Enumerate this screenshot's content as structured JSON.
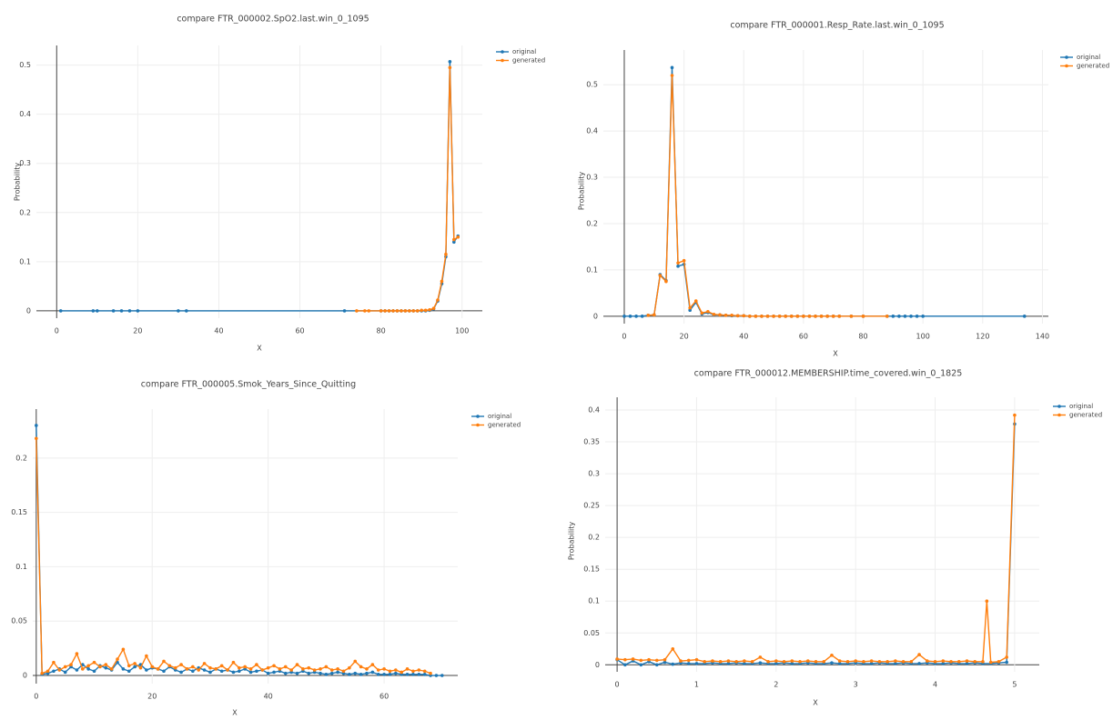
{
  "chart_data": [
    {
      "type": "line",
      "title": "compare FTR_000002.SpO2.last.win_0_1095",
      "x_label": "X",
      "y_label": "Probability",
      "xlim": [
        -5,
        105
      ],
      "ylim": [
        -0.015,
        0.54
      ],
      "xticks": [
        0,
        20,
        40,
        60,
        80,
        100
      ],
      "yticks": [
        0,
        0.1,
        0.2,
        0.3,
        0.4,
        0.5
      ],
      "grid": true,
      "legend": "right",
      "series": [
        {
          "name": "original",
          "color": "#1f77b4",
          "x": [
            1,
            9,
            10,
            14,
            16,
            18,
            20,
            30,
            32,
            71,
            80,
            81,
            82,
            83,
            84,
            85,
            86,
            87,
            88,
            89,
            90,
            91,
            92,
            93,
            94,
            95,
            96,
            97,
            98,
            99
          ],
          "values": [
            0,
            0,
            0,
            0,
            0,
            0,
            0,
            0,
            0,
            0,
            0,
            0,
            0,
            0,
            0,
            0,
            0,
            0,
            0,
            0,
            0,
            0,
            0.001,
            0.004,
            0.02,
            0.055,
            0.11,
            0.507,
            0.14,
            0.152
          ]
        },
        {
          "name": "generated",
          "color": "#ff7f0e",
          "x": [
            74,
            76,
            77,
            80,
            81,
            82,
            83,
            84,
            85,
            86,
            87,
            88,
            89,
            90,
            91,
            92,
            93,
            94,
            95,
            96,
            97,
            98,
            99
          ],
          "values": [
            0,
            0,
            0,
            0,
            0,
            0,
            0,
            0,
            0,
            0,
            0,
            0,
            0,
            0.001,
            0.001,
            0.002,
            0.005,
            0.022,
            0.06,
            0.115,
            0.495,
            0.145,
            0.15
          ]
        }
      ]
    },
    {
      "type": "line",
      "title": "compare FTR_000001.Resp_Rate.last.win_0_1095",
      "x_label": "X",
      "y_label": "Probability",
      "xlim": [
        -7,
        142
      ],
      "ylim": [
        -0.016,
        0.575
      ],
      "xticks": [
        0,
        20,
        40,
        60,
        80,
        100,
        120,
        140
      ],
      "yticks": [
        0,
        0.1,
        0.2,
        0.3,
        0.4,
        0.5
      ],
      "grid": true,
      "legend": "right",
      "series": [
        {
          "name": "original",
          "color": "#1f77b4",
          "x": [
            0,
            2,
            4,
            6,
            8,
            10,
            12,
            14,
            16,
            18,
            20,
            22,
            24,
            26,
            28,
            30,
            32,
            34,
            36,
            38,
            40,
            42,
            44,
            46,
            48,
            50,
            52,
            54,
            56,
            58,
            60,
            62,
            64,
            66,
            68,
            70,
            72,
            76,
            80,
            88,
            90,
            92,
            94,
            96,
            98,
            100,
            134
          ],
          "values": [
            0,
            0,
            0,
            0,
            0.002,
            0.003,
            0.09,
            0.077,
            0.537,
            0.108,
            0.112,
            0.013,
            0.03,
            0.005,
            0.008,
            0.003,
            0.003,
            0.002,
            0.001,
            0.001,
            0.001,
            0,
            0,
            0,
            0,
            0,
            0,
            0,
            0,
            0,
            0,
            0,
            0,
            0,
            0,
            0,
            0,
            0,
            0,
            0,
            0,
            0,
            0,
            0,
            0,
            0,
            0
          ]
        },
        {
          "name": "generated",
          "color": "#ff7f0e",
          "x": [
            8,
            10,
            12,
            14,
            16,
            18,
            20,
            22,
            24,
            26,
            28,
            30,
            32,
            34,
            36,
            38,
            40,
            42,
            44,
            46,
            48,
            50,
            52,
            54,
            56,
            58,
            60,
            62,
            64,
            66,
            68,
            70,
            72,
            76,
            80,
            88
          ],
          "values": [
            0.002,
            0.003,
            0.088,
            0.075,
            0.52,
            0.115,
            0.12,
            0.018,
            0.033,
            0.007,
            0.01,
            0.004,
            0.003,
            0.002,
            0.002,
            0.001,
            0.001,
            0,
            0,
            0,
            0,
            0,
            0,
            0,
            0,
            0,
            0,
            0,
            0,
            0,
            0,
            0,
            0,
            0,
            0,
            0
          ]
        }
      ]
    },
    {
      "type": "line",
      "title": "compare FTR_000005.Smok_Years_Since_Quitting",
      "x_label": "X",
      "xlim": [
        -0.6,
        72.7
      ],
      "ylim": [
        -0.0075,
        0.245
      ],
      "xticks": [
        0,
        20,
        40,
        60
      ],
      "yticks": [
        0,
        0.05,
        0.1,
        0.15,
        0.2
      ],
      "grid": true,
      "legend": "right",
      "series": [
        {
          "name": "original",
          "color": "#1f77b4",
          "x": [
            0,
            1,
            2,
            3,
            4,
            5,
            6,
            7,
            8,
            9,
            10,
            11,
            12,
            13,
            14,
            15,
            16,
            17,
            18,
            19,
            20,
            21,
            22,
            23,
            24,
            25,
            26,
            27,
            28,
            29,
            30,
            31,
            32,
            33,
            34,
            35,
            36,
            37,
            38,
            39,
            40,
            41,
            42,
            43,
            44,
            45,
            46,
            47,
            48,
            49,
            50,
            51,
            52,
            53,
            54,
            55,
            56,
            57,
            58,
            59,
            60,
            61,
            62,
            63,
            64,
            65,
            66,
            67,
            68,
            69,
            70
          ],
          "values": [
            0.23,
            0.001,
            0.002,
            0.004,
            0.006,
            0.003,
            0.008,
            0.005,
            0.01,
            0.006,
            0.004,
            0.009,
            0.007,
            0.005,
            0.012,
            0.006,
            0.004,
            0.008,
            0.01,
            0.005,
            0.007,
            0.006,
            0.004,
            0.008,
            0.005,
            0.003,
            0.006,
            0.004,
            0.007,
            0.005,
            0.003,
            0.006,
            0.004,
            0.005,
            0.003,
            0.004,
            0.006,
            0.003,
            0.004,
            0.005,
            0.002,
            0.003,
            0.004,
            0.002,
            0.003,
            0.002,
            0.004,
            0.002,
            0.003,
            0.002,
            0.001,
            0.002,
            0.003,
            0.002,
            0.001,
            0.002,
            0.001,
            0.002,
            0.003,
            0.001,
            0.001,
            0.001,
            0.002,
            0.001,
            0.001,
            0.001,
            0.001,
            0.001,
            0,
            0,
            0
          ]
        },
        {
          "name": "generated",
          "color": "#ff7f0e",
          "x": [
            0,
            1,
            2,
            3,
            4,
            5,
            6,
            7,
            8,
            9,
            10,
            11,
            12,
            13,
            14,
            15,
            16,
            17,
            18,
            19,
            20,
            21,
            22,
            23,
            24,
            25,
            26,
            27,
            28,
            29,
            30,
            31,
            32,
            33,
            34,
            35,
            36,
            37,
            38,
            39,
            40,
            41,
            42,
            43,
            44,
            45,
            46,
            47,
            48,
            49,
            50,
            51,
            52,
            53,
            54,
            55,
            56,
            57,
            58,
            59,
            60,
            61,
            62,
            63,
            64,
            65,
            66,
            67,
            68
          ],
          "values": [
            0.218,
            0.002,
            0.004,
            0.012,
            0.005,
            0.008,
            0.01,
            0.02,
            0.006,
            0.009,
            0.012,
            0.008,
            0.01,
            0.006,
            0.015,
            0.024,
            0.009,
            0.011,
            0.007,
            0.018,
            0.008,
            0.006,
            0.013,
            0.009,
            0.007,
            0.01,
            0.006,
            0.008,
            0.005,
            0.011,
            0.007,
            0.006,
            0.009,
            0.005,
            0.012,
            0.007,
            0.008,
            0.006,
            0.01,
            0.005,
            0.007,
            0.009,
            0.006,
            0.008,
            0.005,
            0.01,
            0.006,
            0.007,
            0.005,
            0.006,
            0.008,
            0.005,
            0.006,
            0.004,
            0.007,
            0.013,
            0.008,
            0.006,
            0.01,
            0.005,
            0.006,
            0.004,
            0.005,
            0.003,
            0.006,
            0.004,
            0.005,
            0.004,
            0.002
          ]
        }
      ]
    },
    {
      "type": "line",
      "title": "compare FTR_000012.MEMBERSHIP.time_covered.win_0_1825",
      "x_label": "X",
      "y_label": "Probability",
      "xlim": [
        -0.15,
        5.31
      ],
      "ylim": [
        -0.011,
        0.42
      ],
      "xticks": [
        0,
        1,
        2,
        3,
        4,
        5
      ],
      "yticks": [
        0,
        0.05,
        0.1,
        0.15,
        0.2,
        0.25,
        0.3,
        0.35,
        0.4
      ],
      "grid": true,
      "legend": "right",
      "series": [
        {
          "name": "original",
          "color": "#1f77b4",
          "x": [
            0,
            0.1,
            0.2,
            0.3,
            0.4,
            0.5,
            0.6,
            0.7,
            0.8,
            0.9,
            1,
            1.1,
            1.2,
            1.3,
            1.4,
            1.5,
            1.6,
            1.7,
            1.8,
            1.9,
            2,
            2.1,
            2.2,
            2.3,
            2.4,
            2.5,
            2.6,
            2.7,
            2.8,
            2.9,
            3,
            3.1,
            3.2,
            3.3,
            3.4,
            3.5,
            3.6,
            3.7,
            3.8,
            3.9,
            4,
            4.1,
            4.2,
            4.3,
            4.4,
            4.5,
            4.6,
            4.7,
            4.8,
            4.9,
            5
          ],
          "values": [
            0.008,
            0,
            0.006,
            0,
            0.005,
            0,
            0.004,
            0.001,
            0.003,
            0.002,
            0.002,
            0.002,
            0.003,
            0.002,
            0.002,
            0.003,
            0.002,
            0.002,
            0.003,
            0.002,
            0.002,
            0.003,
            0.002,
            0.002,
            0.003,
            0.002,
            0.002,
            0.003,
            0.002,
            0.002,
            0.003,
            0.002,
            0.002,
            0.003,
            0.002,
            0.002,
            0.003,
            0.002,
            0.002,
            0.003,
            0.002,
            0.002,
            0.003,
            0.002,
            0.002,
            0.003,
            0.002,
            0.002,
            0.003,
            0.004,
            0.378
          ]
        },
        {
          "name": "generated",
          "color": "#ff7f0e",
          "x": [
            0,
            0.1,
            0.2,
            0.3,
            0.4,
            0.5,
            0.6,
            0.7,
            0.8,
            0.9,
            1,
            1.1,
            1.2,
            1.3,
            1.4,
            1.5,
            1.6,
            1.7,
            1.8,
            1.9,
            2,
            2.1,
            2.2,
            2.3,
            2.4,
            2.5,
            2.6,
            2.7,
            2.8,
            2.9,
            3,
            3.1,
            3.2,
            3.3,
            3.4,
            3.5,
            3.6,
            3.7,
            3.8,
            3.9,
            4,
            4.1,
            4.2,
            4.3,
            4.4,
            4.5,
            4.6,
            4.65,
            4.7,
            4.8,
            4.9,
            5
          ],
          "values": [
            0.009,
            0.008,
            0.009,
            0.007,
            0.008,
            0.007,
            0.008,
            0.025,
            0.006,
            0.007,
            0.008,
            0.005,
            0.006,
            0.005,
            0.006,
            0.005,
            0.006,
            0.005,
            0.012,
            0.005,
            0.006,
            0.005,
            0.006,
            0.005,
            0.006,
            0.005,
            0.005,
            0.015,
            0.006,
            0.005,
            0.006,
            0.005,
            0.006,
            0.005,
            0.005,
            0.006,
            0.005,
            0.005,
            0.016,
            0.006,
            0.005,
            0.006,
            0.005,
            0.005,
            0.006,
            0.005,
            0.005,
            0.1,
            0.004,
            0.005,
            0.012,
            0.392
          ]
        }
      ]
    }
  ]
}
